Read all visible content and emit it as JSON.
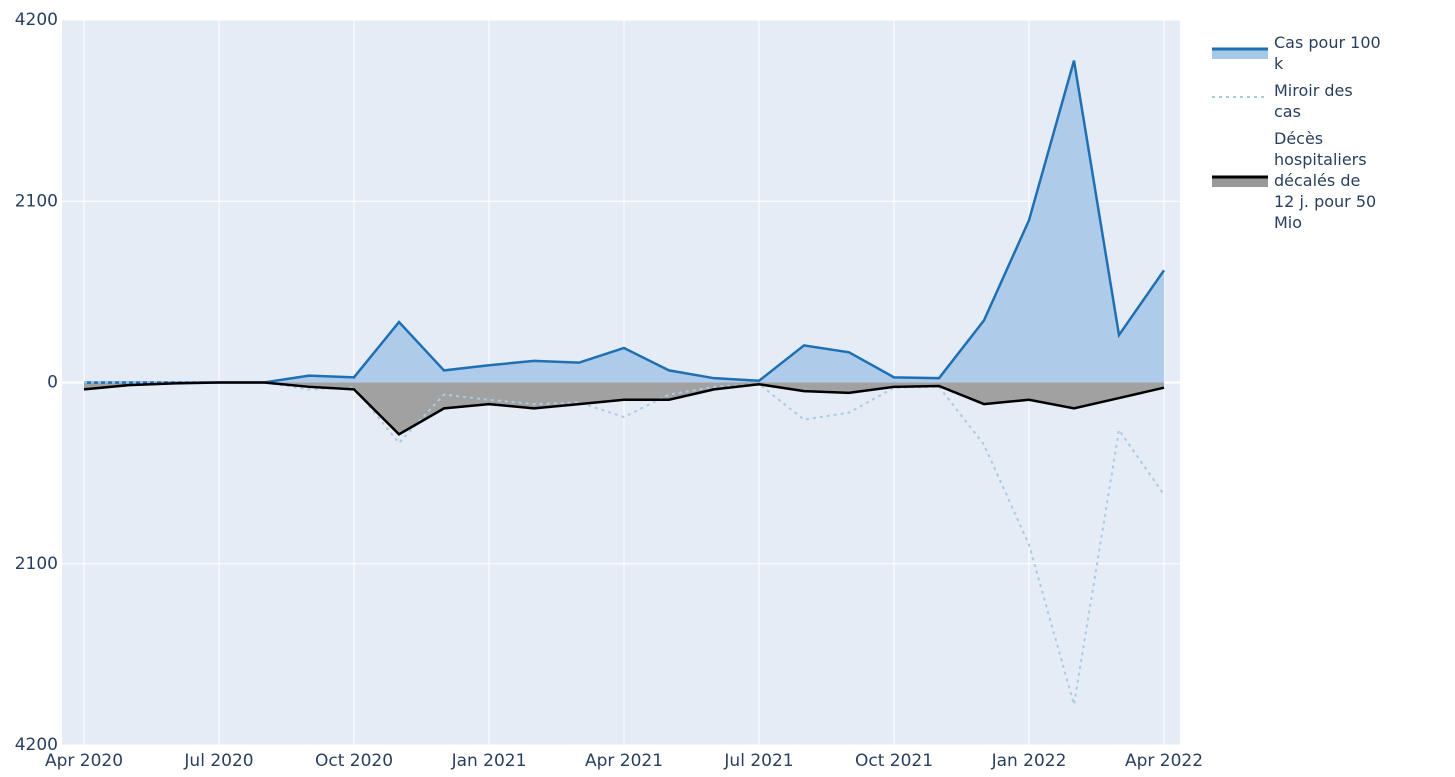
{
  "chart_data": {
    "type": "area",
    "x": [
      "2020-04",
      "2020-05",
      "2020-06",
      "2020-07",
      "2020-08",
      "2020-09",
      "2020-10",
      "2020-11",
      "2020-12",
      "2021-01",
      "2021-02",
      "2021-03",
      "2021-04",
      "2021-05",
      "2021-06",
      "2021-07",
      "2021-08",
      "2021-09",
      "2021-10",
      "2021-11",
      "2021-12",
      "2022-01",
      "2022-02",
      "2022-03",
      "2022-04"
    ],
    "series": [
      {
        "name": "Cas pour 100 k",
        "color": "#1f6fb4",
        "fill": "#a7c9e8",
        "line_style": "solid",
        "values": [
          0,
          0,
          0,
          0,
          0,
          80,
          60,
          700,
          140,
          200,
          250,
          230,
          400,
          140,
          50,
          20,
          430,
          350,
          60,
          50,
          720,
          1880,
          3730,
          550,
          1300
        ]
      },
      {
        "name": "Miroir des cas",
        "color": "#a9cbe6",
        "line_style": "dotted",
        "values": [
          0,
          0,
          0,
          0,
          0,
          -80,
          -60,
          -700,
          -140,
          -200,
          -250,
          -230,
          -400,
          -140,
          -50,
          -20,
          -430,
          -350,
          -60,
          -50,
          -720,
          -1880,
          -3730,
          -550,
          -1300
        ]
      },
      {
        "name": "Décès hospitaliers décalés de 12 j. pour 50 Mio",
        "color": "#000000",
        "fill": "#999999",
        "line_style": "solid",
        "values": [
          -80,
          -30,
          -10,
          0,
          0,
          -50,
          -80,
          -600,
          -300,
          -250,
          -300,
          -250,
          -200,
          -200,
          -80,
          -20,
          -100,
          -120,
          -50,
          -40,
          -250,
          -200,
          -300,
          -180,
          -60
        ]
      }
    ],
    "xlim": [
      "2020-04",
      "2022-04"
    ],
    "xticks": [
      {
        "value": "2020-04",
        "label": "Apr 2020"
      },
      {
        "value": "2020-07",
        "label": "Jul 2020"
      },
      {
        "value": "2020-10",
        "label": "Oct 2020"
      },
      {
        "value": "2021-01",
        "label": "Jan 2021"
      },
      {
        "value": "2021-04",
        "label": "Apr 2021"
      },
      {
        "value": "2021-07",
        "label": "Jul 2021"
      },
      {
        "value": "2021-10",
        "label": "Oct 2021"
      },
      {
        "value": "2022-01",
        "label": "Jan 2022"
      },
      {
        "value": "2022-04",
        "label": "Apr 2022"
      }
    ],
    "ylim": [
      -4200,
      4200
    ],
    "yticks": [
      {
        "value": -4200,
        "label": "4200"
      },
      {
        "value": -2100,
        "label": "2100"
      },
      0,
      2100,
      4200
    ],
    "grid": true,
    "legend": "top-right",
    "background": "#e5ecf6"
  }
}
